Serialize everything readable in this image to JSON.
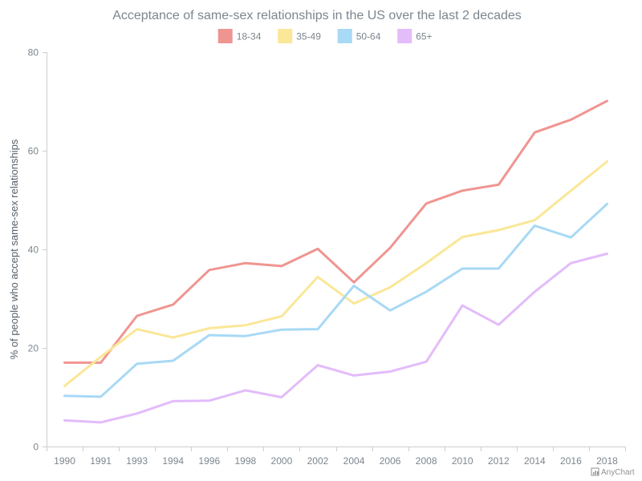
{
  "chart_data": {
    "type": "line",
    "title": "Acceptance of same-sex relationships in the US over the last 2 decades",
    "xlabel": "",
    "ylabel": "% of people who accept same-sex relationships",
    "ylim": [
      0,
      80
    ],
    "y_ticks": [
      0,
      20,
      40,
      60,
      80
    ],
    "grid": false,
    "legend_position": "top-center",
    "categories": [
      "1990",
      "1991",
      "1993",
      "1994",
      "1996",
      "1998",
      "2000",
      "2002",
      "2004",
      "2006",
      "2008",
      "2010",
      "2012",
      "2014",
      "2016",
      "2018"
    ],
    "series": [
      {
        "name": "18-34",
        "color": "#ef9591",
        "values": [
          17,
          17,
          26.5,
          28.8,
          35.8,
          37.2,
          36.6,
          40.1,
          33.3,
          40.3,
          49.3,
          51.9,
          53.1,
          63.7,
          66.3,
          70.1
        ]
      },
      {
        "name": "35-49",
        "color": "#fae797",
        "values": [
          12.3,
          18.2,
          23.8,
          22.1,
          24,
          24.6,
          26.4,
          34.4,
          29,
          32.3,
          37.2,
          42.5,
          43.9,
          45.9,
          51.9,
          57.8
        ]
      },
      {
        "name": "50-64",
        "color": "#a8d9f5",
        "values": [
          10.3,
          10.1,
          16.8,
          17.4,
          22.6,
          22.4,
          23.7,
          23.8,
          32.6,
          27.6,
          31.4,
          36.1,
          36.1,
          44.8,
          42.4,
          49.2
        ]
      },
      {
        "name": "65+",
        "color": "#e3bcfa",
        "values": [
          5.3,
          4.9,
          6.7,
          9.2,
          9.3,
          11.4,
          10,
          16.5,
          14.4,
          15.2,
          17.2,
          28.6,
          24.7,
          31.4,
          37.2,
          39.1
        ]
      }
    ]
  },
  "credits": {
    "label": "AnyChart"
  },
  "colors": {
    "axis": "#cecece",
    "text": "#7c868e"
  }
}
